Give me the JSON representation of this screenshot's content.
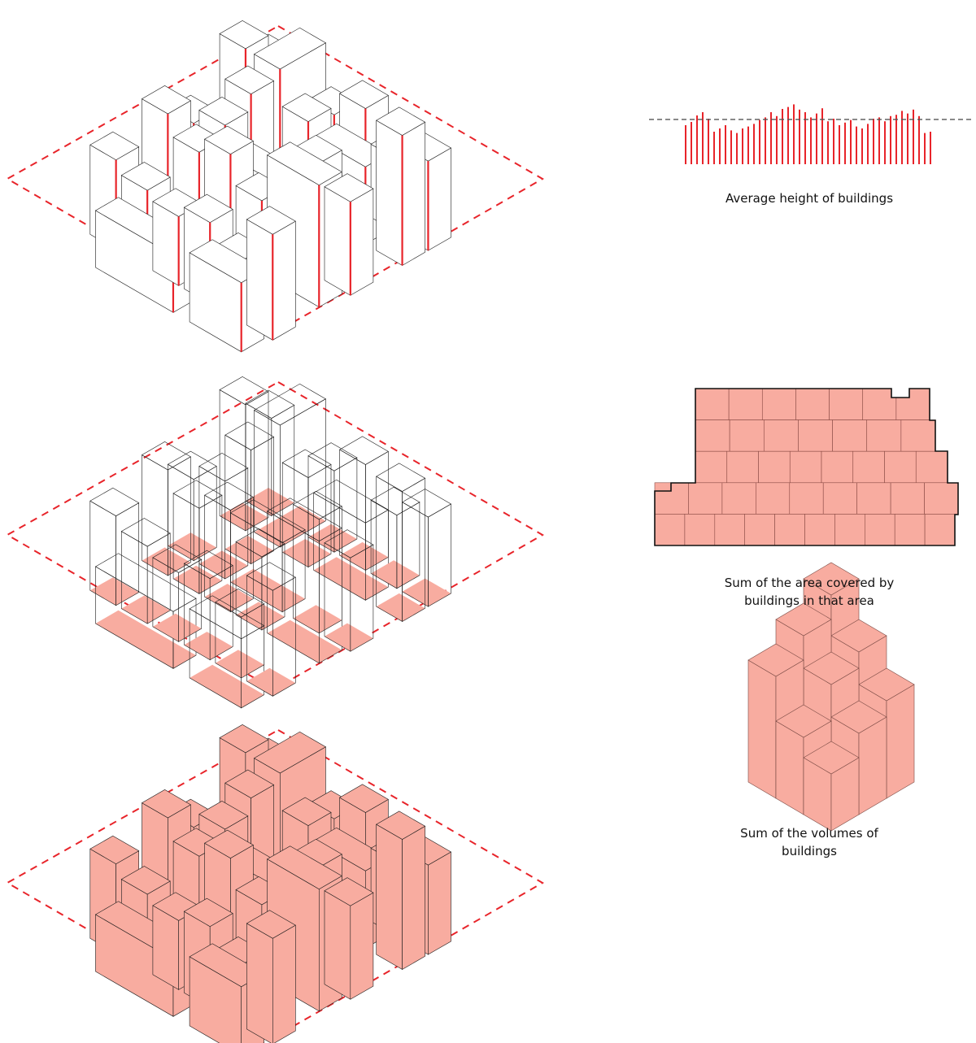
{
  "captions": {
    "height": "Average height of buildings",
    "area_line1": "Sum of the area covered by",
    "area_line2": "buildings in that area",
    "volume_line1": "Sum of the volumes of",
    "volume_line2": "buildings"
  },
  "colors": {
    "boundary": "#e8242a",
    "building_fill": "#f8aca0",
    "building_stroke": "#1a1a1a",
    "average_line": "#555555"
  },
  "buildings": [
    {
      "col": 0,
      "row": 0,
      "w": 1,
      "d": 1,
      "h": 120
    },
    {
      "col": 1,
      "row": 0,
      "w": 1,
      "d": 2,
      "h": 150
    },
    {
      "col": 2,
      "row": 0,
      "w": 1,
      "d": 1,
      "h": 100
    },
    {
      "col": 3,
      "row": 0,
      "w": 1,
      "d": 1,
      "h": 130
    },
    {
      "col": 4,
      "row": 0,
      "w": 1,
      "d": 1,
      "h": 90
    },
    {
      "col": 5,
      "row": 0,
      "w": 1,
      "d": 1,
      "h": 110
    },
    {
      "col": 0,
      "row": 1,
      "w": 1,
      "d": 1,
      "h": 155
    },
    {
      "col": 1,
      "row": 2,
      "w": 1,
      "d": 1,
      "h": 140
    },
    {
      "col": 2,
      "row": 1,
      "w": 1,
      "d": 1,
      "h": 110
    },
    {
      "col": 3,
      "row": 1,
      "w": 2,
      "d": 1,
      "h": 95
    },
    {
      "col": 5,
      "row": 1,
      "w": 1,
      "d": 1,
      "h": 160
    },
    {
      "col": 0,
      "row": 3,
      "w": 1,
      "d": 1,
      "h": 100
    },
    {
      "col": 1,
      "row": 3,
      "w": 1,
      "d": 1,
      "h": 120
    },
    {
      "col": 2,
      "row": 3,
      "w": 2,
      "d": 1,
      "h": 85
    },
    {
      "col": 4,
      "row": 3,
      "w": 1,
      "d": 1,
      "h": 140
    },
    {
      "col": 5,
      "row": 3,
      "w": 1,
      "d": 1,
      "h": 115
    },
    {
      "col": 0,
      "row": 4,
      "w": 1,
      "d": 1,
      "h": 130
    },
    {
      "col": 1,
      "row": 4,
      "w": 1,
      "d": 1,
      "h": 105
    },
    {
      "col": 2,
      "row": 4,
      "w": 1,
      "d": 1,
      "h": 125
    },
    {
      "col": 3,
      "row": 4,
      "w": 1,
      "d": 1,
      "h": 90
    },
    {
      "col": 4,
      "row": 4,
      "w": 2,
      "d": 1,
      "h": 150
    },
    {
      "col": 0,
      "row": 6,
      "w": 1,
      "d": 1,
      "h": 110
    },
    {
      "col": 1,
      "row": 6,
      "w": 1,
      "d": 1,
      "h": 95
    },
    {
      "col": 2,
      "row": 6,
      "w": 1,
      "d": 1,
      "h": 85
    },
    {
      "col": 3,
      "row": 6,
      "w": 1,
      "d": 1,
      "h": 100
    },
    {
      "col": 4,
      "row": 6,
      "w": 1,
      "d": 1,
      "h": 75
    },
    {
      "col": 5,
      "row": 6,
      "w": 1,
      "d": 1,
      "h": 130
    },
    {
      "col": 1,
      "row": 7,
      "w": 3,
      "d": 1,
      "h": 70
    },
    {
      "col": 4,
      "row": 7,
      "w": 2,
      "d": 1,
      "h": 85
    }
  ],
  "height_bars": [
    60,
    65,
    75,
    80,
    70,
    50,
    55,
    60,
    52,
    48,
    55,
    58,
    62,
    68,
    72,
    80,
    74,
    85,
    88,
    92,
    84,
    80,
    72,
    78,
    86,
    66,
    70,
    60,
    64,
    68,
    58,
    55,
    62,
    70,
    72,
    66,
    74,
    76,
    82,
    78,
    84,
    74,
    48,
    50
  ],
  "footprint": {
    "rows": [
      {
        "x0": 855,
        "x1": 1143,
        "cols": 7,
        "notch": {
          "x0": 1096,
          "x1": 1118
        }
      },
      {
        "x0": 855,
        "x1": 1150,
        "cols": 7
      },
      {
        "x0": 855,
        "x1": 1165,
        "cols": 8
      },
      {
        "x0": 805,
        "x1": 1178,
        "cols": 9,
        "step": {
          "x1": 825
        }
      },
      {
        "x0": 805,
        "x1": 1174,
        "cols": 10
      }
    ]
  },
  "aggregate": [
    {
      "col": 0,
      "row": 0,
      "w": 1,
      "d": 1,
      "h": 210
    },
    {
      "col": 1,
      "row": 0,
      "w": 1,
      "d": 1,
      "h": 160
    },
    {
      "col": 0,
      "row": 1,
      "w": 1,
      "d": 1,
      "h": 180
    },
    {
      "col": 2,
      "row": 0,
      "w": 1,
      "d": 1,
      "h": 120
    },
    {
      "col": 1,
      "row": 1,
      "w": 1,
      "d": 1,
      "h": 140
    },
    {
      "col": 0,
      "row": 2,
      "w": 1,
      "d": 1,
      "h": 150
    },
    {
      "col": 2,
      "row": 1,
      "w": 1,
      "d": 1,
      "h": 100
    },
    {
      "col": 1,
      "row": 2,
      "w": 1,
      "d": 1,
      "h": 95
    },
    {
      "col": 2,
      "row": 2,
      "w": 1,
      "d": 1,
      "h": 70
    }
  ]
}
